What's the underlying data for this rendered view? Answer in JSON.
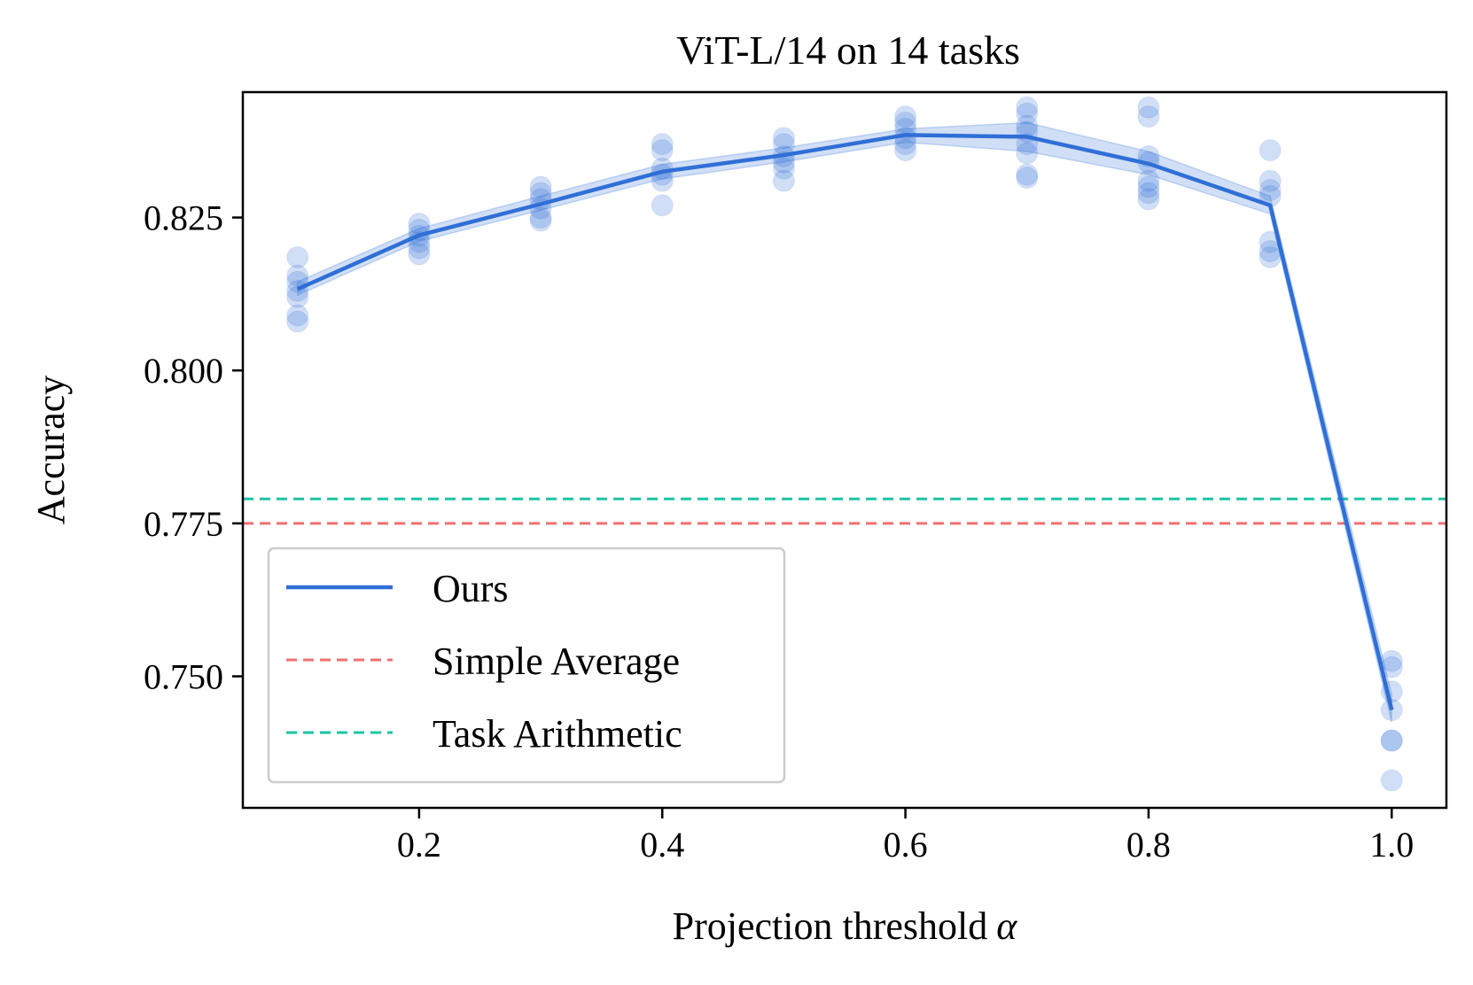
{
  "chart_data": {
    "type": "line",
    "title": "ViT-L/14 on 14 tasks",
    "xlabel": "Projection threshold",
    "xlabel_symbol": "α",
    "ylabel": "Accuracy",
    "xlim": [
      0.055,
      1.045
    ],
    "ylim": [
      0.7285,
      0.8455
    ],
    "xticks": [
      0.2,
      0.4,
      0.6,
      0.8,
      1.0
    ],
    "xtick_labels": [
      "0.2",
      "0.4",
      "0.6",
      "0.8",
      "1.0"
    ],
    "yticks": [
      0.75,
      0.775,
      0.8,
      0.825
    ],
    "ytick_labels": [
      "0.750",
      "0.775",
      "0.800",
      "0.825"
    ],
    "series": [
      {
        "name": "Ours",
        "color": "#2f6fd6",
        "x": [
          0.1,
          0.2,
          0.3,
          0.4,
          0.5,
          0.6,
          0.7,
          0.8,
          0.9,
          1.0
        ],
        "values": [
          0.8133,
          0.8221,
          0.8272,
          0.8325,
          0.8352,
          0.8385,
          0.8382,
          0.8338,
          0.827,
          0.7445
        ],
        "band_lower": [
          0.8123,
          0.8211,
          0.8262,
          0.8313,
          0.8341,
          0.8373,
          0.8358,
          0.832,
          0.8256,
          0.7425
        ],
        "band_upper": [
          0.8145,
          0.8232,
          0.8285,
          0.8337,
          0.8364,
          0.8395,
          0.8405,
          0.8358,
          0.8285,
          0.747
        ],
        "scatter": [
          {
            "x": 0.1,
            "y": [
              0.8185,
              0.8155,
              0.8145,
              0.813,
              0.812,
              0.809,
              0.808
            ]
          },
          {
            "x": 0.2,
            "y": [
              0.824,
              0.823,
              0.822,
              0.821,
              0.82,
              0.819
            ]
          },
          {
            "x": 0.3,
            "y": [
              0.83,
              0.829,
              0.828,
              0.8265,
              0.825,
              0.8245
            ]
          },
          {
            "x": 0.4,
            "y": [
              0.837,
              0.836,
              0.833,
              0.832,
              0.831,
              0.827
            ]
          },
          {
            "x": 0.5,
            "y": [
              0.838,
              0.837,
              0.835,
              0.834,
              0.833,
              0.831
            ]
          },
          {
            "x": 0.6,
            "y": [
              0.8415,
              0.8405,
              0.8395,
              0.838,
              0.837,
              0.836
            ]
          },
          {
            "x": 0.7,
            "y": [
              0.843,
              0.842,
              0.84,
              0.839,
              0.837,
              0.8355,
              0.832,
              0.8315
            ]
          },
          {
            "x": 0.8,
            "y": [
              0.843,
              0.8415,
              0.835,
              0.834,
              0.831,
              0.83,
              0.829,
              0.828
            ]
          },
          {
            "x": 0.9,
            "y": [
              0.836,
              0.831,
              0.8295,
              0.8285,
              0.821,
              0.8195,
              0.8185
            ]
          },
          {
            "x": 1.0,
            "y": [
              0.7525,
              0.7515,
              0.7475,
              0.7445,
              0.7395,
              0.7395,
              0.733
            ]
          }
        ]
      },
      {
        "name": "Simple Average",
        "color": "#f07070",
        "style": "dashed",
        "hline": 0.775
      },
      {
        "name": "Task Arithmetic",
        "color": "#1bc4a4",
        "style": "dashed",
        "hline": 0.779
      }
    ],
    "legend": {
      "position": "lower-left",
      "entries": [
        "Ours",
        "Simple Average",
        "Task Arithmetic"
      ]
    },
    "grid": false
  }
}
